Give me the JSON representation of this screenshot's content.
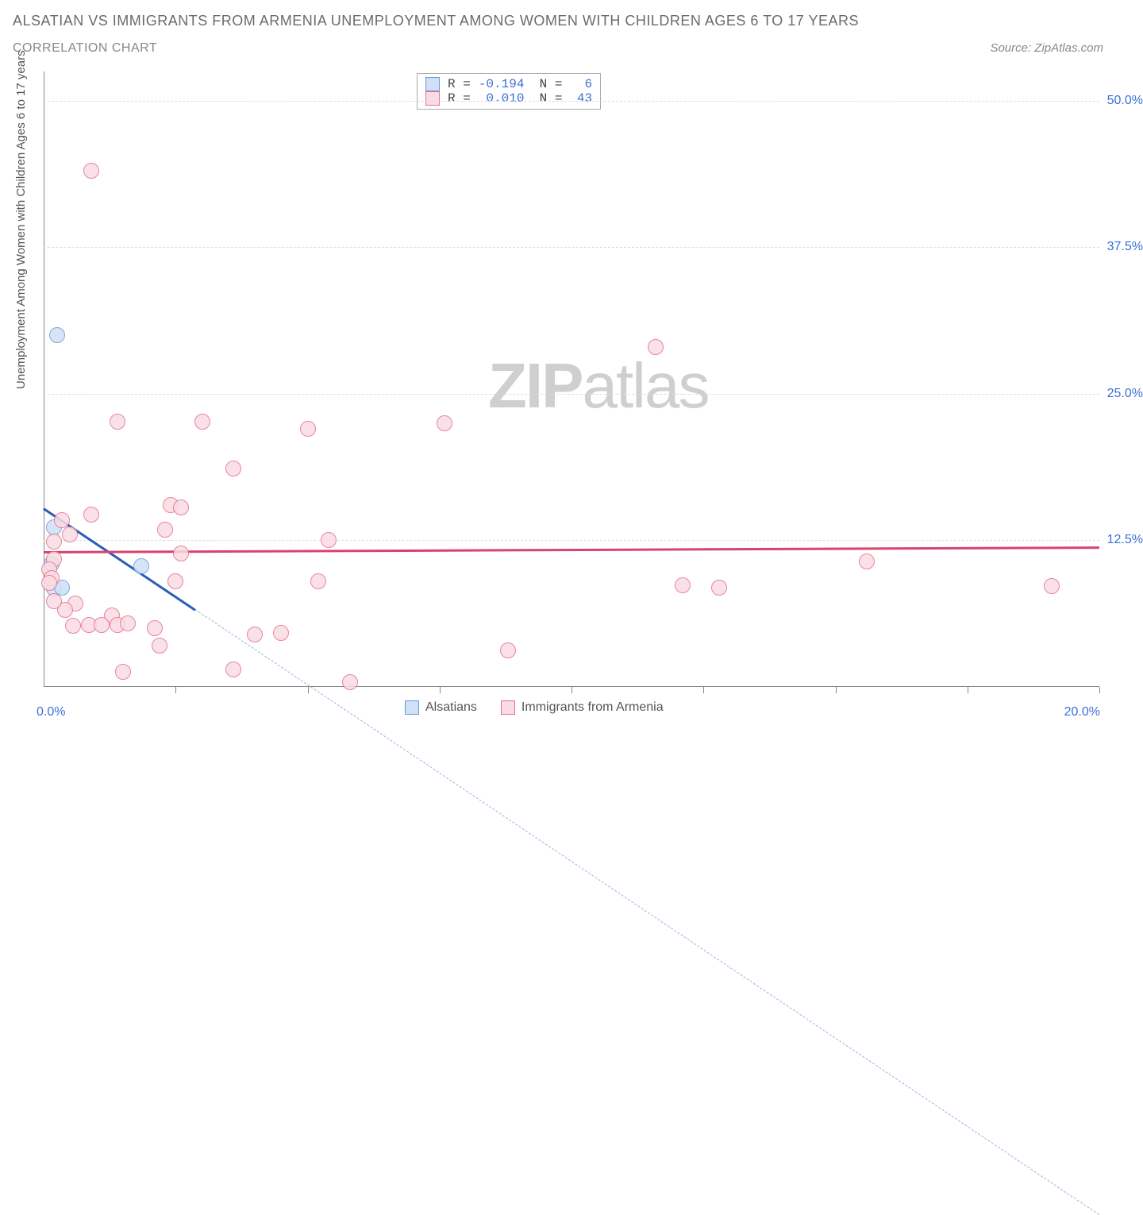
{
  "title": "ALSATIAN VS IMMIGRANTS FROM ARMENIA UNEMPLOYMENT AMONG WOMEN WITH CHILDREN AGES 6 TO 17 YEARS",
  "subtitle": "CORRELATION CHART",
  "source": "Source: ZipAtlas.com",
  "ylabel": "Unemployment Among Women with Children Ages 6 to 17 years",
  "watermark_a": "ZIP",
  "watermark_b": "atlas",
  "chart": {
    "type": "scatter",
    "xlim": [
      0,
      20
    ],
    "ylim": [
      0,
      52.5
    ],
    "yticks": [
      {
        "v": 12.5,
        "label": "12.5%"
      },
      {
        "v": 25.0,
        "label": "25.0%"
      },
      {
        "v": 37.5,
        "label": "37.5%"
      },
      {
        "v": 50.0,
        "label": "50.0%"
      }
    ],
    "x_tick_left": "0.0%",
    "x_tick_right": "20.0%",
    "x_minor_ticks": [
      2.5,
      5.0,
      7.5,
      10.0,
      12.5,
      15.0,
      17.5,
      20.0
    ],
    "background_color": "#ffffff",
    "grid_color": "#dcdcdc",
    "marker_radius": 10,
    "series": [
      {
        "name": "Alsatians",
        "fill": "#cfe0f7",
        "stroke": "#6a97de",
        "r": -0.194,
        "n": 6,
        "trend": {
          "y_at_x0": 15.3,
          "y_at_xmax": -45,
          "color": "#2a5db8"
        },
        "points": [
          {
            "x": 0.25,
            "y": 30.0
          },
          {
            "x": 0.2,
            "y": 13.6
          },
          {
            "x": 0.15,
            "y": 10.5
          },
          {
            "x": 1.85,
            "y": 10.3
          },
          {
            "x": 0.2,
            "y": 8.4
          },
          {
            "x": 0.35,
            "y": 8.5
          }
        ]
      },
      {
        "name": "Immigrants from Armenia",
        "fill": "#fadbe3",
        "stroke": "#e66f91",
        "r": 0.01,
        "n": 43,
        "trend": {
          "y_at_x0": 11.6,
          "y_at_xmax": 12.0,
          "color": "#d9436e"
        },
        "points": [
          {
            "x": 0.9,
            "y": 44.0
          },
          {
            "x": 11.6,
            "y": 29.0
          },
          {
            "x": 1.4,
            "y": 22.6
          },
          {
            "x": 3.0,
            "y": 22.6
          },
          {
            "x": 5.0,
            "y": 22.0
          },
          {
            "x": 7.6,
            "y": 22.5
          },
          {
            "x": 3.6,
            "y": 18.6
          },
          {
            "x": 2.4,
            "y": 15.5
          },
          {
            "x": 2.6,
            "y": 15.3
          },
          {
            "x": 0.9,
            "y": 14.7
          },
          {
            "x": 0.35,
            "y": 14.2
          },
          {
            "x": 2.3,
            "y": 13.4
          },
          {
            "x": 0.5,
            "y": 13.0
          },
          {
            "x": 0.2,
            "y": 12.4
          },
          {
            "x": 5.4,
            "y": 12.5
          },
          {
            "x": 2.6,
            "y": 11.4
          },
          {
            "x": 0.2,
            "y": 10.9
          },
          {
            "x": 0.1,
            "y": 10.0
          },
          {
            "x": 15.6,
            "y": 10.7
          },
          {
            "x": 0.15,
            "y": 9.3
          },
          {
            "x": 0.1,
            "y": 8.9
          },
          {
            "x": 2.5,
            "y": 9.0
          },
          {
            "x": 5.2,
            "y": 9.0
          },
          {
            "x": 12.1,
            "y": 8.7
          },
          {
            "x": 12.8,
            "y": 8.5
          },
          {
            "x": 19.1,
            "y": 8.6
          },
          {
            "x": 0.6,
            "y": 7.1
          },
          {
            "x": 0.4,
            "y": 6.6
          },
          {
            "x": 1.3,
            "y": 6.1
          },
          {
            "x": 0.85,
            "y": 5.3
          },
          {
            "x": 1.1,
            "y": 5.3
          },
          {
            "x": 1.4,
            "y": 5.3
          },
          {
            "x": 1.6,
            "y": 5.4
          },
          {
            "x": 0.55,
            "y": 5.2
          },
          {
            "x": 2.2,
            "y": 3.5
          },
          {
            "x": 2.1,
            "y": 5.0
          },
          {
            "x": 4.0,
            "y": 4.5
          },
          {
            "x": 4.5,
            "y": 4.6
          },
          {
            "x": 8.8,
            "y": 3.1
          },
          {
            "x": 1.5,
            "y": 1.3
          },
          {
            "x": 3.6,
            "y": 1.5
          },
          {
            "x": 5.8,
            "y": 0.4
          },
          {
            "x": 0.2,
            "y": 7.3
          }
        ]
      }
    ],
    "legend_top": {
      "labels": {
        "r": "R =",
        "n": "N ="
      }
    },
    "bottom_legend": [
      {
        "swatch_fill": "#cfe0f7",
        "swatch_stroke": "#6a97de",
        "label": "Alsatians"
      },
      {
        "swatch_fill": "#fadbe3",
        "swatch_stroke": "#e66f91",
        "label": "Immigrants from Armenia"
      }
    ]
  }
}
